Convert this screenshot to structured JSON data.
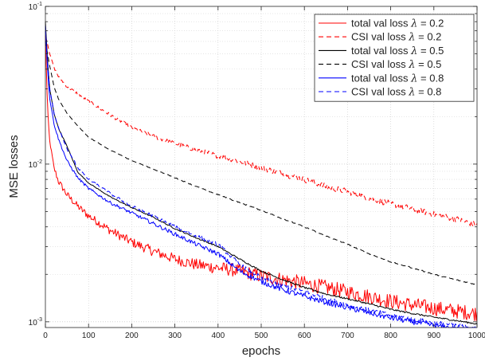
{
  "chart_data": {
    "type": "line",
    "title": "",
    "xlabel": "epochs",
    "ylabel": "MSE  losses",
    "xlim": [
      0,
      1000
    ],
    "ylim": [
      0.00092,
      0.1
    ],
    "yscale": "log",
    "grid": true,
    "legend_position": "top-right",
    "x_ticks": [
      0,
      100,
      200,
      300,
      400,
      500,
      600,
      700,
      800,
      900,
      1000
    ],
    "x_tick_labels": [
      "0",
      "100",
      "200",
      "300",
      "400",
      "500",
      "600",
      "700",
      "800",
      "900",
      "1000"
    ],
    "y_ticks": [
      0.001,
      0.01,
      0.1
    ],
    "y_tick_labels": [
      {
        "base": "10",
        "exp": "-3"
      },
      {
        "base": "10",
        "exp": "-2"
      },
      {
        "base": "10",
        "exp": "-1"
      }
    ],
    "series": [
      {
        "name": "total val loss λ = 0.2",
        "legend": {
          "main": "total val loss ",
          "lambda": "λ",
          "rest": " = 0.2"
        },
        "color": "#ff0000",
        "dash": "solid",
        "x": [
          0,
          5,
          10,
          20,
          30,
          50,
          75,
          100,
          150,
          200,
          250,
          300,
          350,
          400,
          450,
          500,
          550,
          600,
          650,
          700,
          750,
          800,
          850,
          900,
          950,
          1000
        ],
        "y": [
          0.065,
          0.022,
          0.014,
          0.0095,
          0.0078,
          0.0064,
          0.0054,
          0.0047,
          0.0038,
          0.0032,
          0.0028,
          0.0025,
          0.0023,
          0.0022,
          0.0021,
          0.00195,
          0.00185,
          0.00175,
          0.00165,
          0.00155,
          0.00145,
          0.00135,
          0.00128,
          0.00122,
          0.00117,
          0.00113
        ]
      },
      {
        "name": "CSI val loss λ = 0.2",
        "legend": {
          "main": "CSI val loss ",
          "lambda": "λ",
          "rest": " = 0.2"
        },
        "color": "#ff0000",
        "dash": "dashed",
        "x": [
          0,
          5,
          10,
          20,
          30,
          50,
          75,
          100,
          150,
          200,
          250,
          300,
          350,
          400,
          450,
          500,
          550,
          600,
          650,
          700,
          750,
          800,
          850,
          900,
          950,
          1000
        ],
        "y": [
          0.065,
          0.058,
          0.05,
          0.041,
          0.036,
          0.031,
          0.028,
          0.025,
          0.0205,
          0.017,
          0.015,
          0.0135,
          0.0123,
          0.0113,
          0.0104,
          0.0095,
          0.0087,
          0.008,
          0.0072,
          0.0067,
          0.0061,
          0.0056,
          0.0052,
          0.0048,
          0.0045,
          0.0041
        ]
      },
      {
        "name": "total val loss λ = 0.5",
        "legend": {
          "main": "total val loss ",
          "lambda": "λ",
          "rest": " = 0.5"
        },
        "color": "#000000",
        "dash": "solid",
        "x": [
          0,
          5,
          10,
          20,
          30,
          50,
          75,
          100,
          150,
          200,
          250,
          300,
          350,
          400,
          450,
          500,
          550,
          600,
          650,
          700,
          750,
          800,
          850,
          900,
          950,
          1000
        ],
        "y": [
          0.08,
          0.045,
          0.03,
          0.021,
          0.017,
          0.013,
          0.0089,
          0.0076,
          0.0062,
          0.0053,
          0.0046,
          0.0039,
          0.0034,
          0.003,
          0.0025,
          0.0021,
          0.00185,
          0.00165,
          0.0015,
          0.0014,
          0.0013,
          0.0012,
          0.00113,
          0.00107,
          0.00102,
          0.00097
        ]
      },
      {
        "name": "CSI val loss λ = 0.5",
        "legend": {
          "main": "CSI val loss ",
          "lambda": "λ",
          "rest": " = 0.5"
        },
        "color": "#000000",
        "dash": "dashed",
        "x": [
          0,
          5,
          10,
          20,
          30,
          50,
          75,
          100,
          150,
          200,
          250,
          300,
          350,
          400,
          450,
          500,
          550,
          600,
          650,
          700,
          750,
          800,
          850,
          900,
          950,
          1000
        ],
        "y": [
          0.06,
          0.05,
          0.042,
          0.031,
          0.026,
          0.021,
          0.0175,
          0.0148,
          0.0123,
          0.0105,
          0.0093,
          0.0082,
          0.0072,
          0.0064,
          0.0057,
          0.0051,
          0.0045,
          0.004,
          0.0035,
          0.0031,
          0.0027,
          0.0024,
          0.0022,
          0.002,
          0.00185,
          0.00172
        ]
      },
      {
        "name": "total val loss λ = 0.8",
        "legend": {
          "main": "total val loss ",
          "lambda": "λ",
          "rest": " = 0.8"
        },
        "color": "#0000ff",
        "dash": "solid",
        "x": [
          0,
          5,
          10,
          20,
          30,
          50,
          75,
          100,
          150,
          200,
          250,
          300,
          350,
          400,
          450,
          500,
          550,
          600,
          650,
          700,
          750,
          800,
          850,
          900,
          950,
          1000
        ],
        "y": [
          0.075,
          0.04,
          0.026,
          0.018,
          0.0145,
          0.0105,
          0.0082,
          0.007,
          0.0057,
          0.0049,
          0.0042,
          0.0036,
          0.0031,
          0.0027,
          0.0021,
          0.0018,
          0.0016,
          0.00145,
          0.00133,
          0.00123,
          0.00114,
          0.00106,
          0.001,
          0.00095,
          0.0009,
          0.00087
        ]
      },
      {
        "name": "CSI val loss λ = 0.8",
        "legend": {
          "main": "CSI val loss ",
          "lambda": "λ",
          "rest": " = 0.8"
        },
        "color": "#0000ff",
        "dash": "dashed",
        "x": [
          0,
          5,
          10,
          20,
          30,
          50,
          75,
          100,
          150,
          200,
          250,
          300,
          350,
          400,
          450,
          500,
          550,
          600,
          650,
          700,
          750,
          800,
          850,
          900,
          950,
          1000
        ],
        "y": [
          0.07,
          0.043,
          0.03,
          0.021,
          0.017,
          0.0125,
          0.0095,
          0.008,
          0.0065,
          0.0054,
          0.0047,
          0.004,
          0.0035,
          0.0031,
          0.0023,
          0.0019,
          0.0017,
          0.00155,
          0.0014,
          0.00128,
          0.00118,
          0.0011,
          0.00104,
          0.00099,
          0.00095,
          0.00092
        ]
      }
    ]
  }
}
